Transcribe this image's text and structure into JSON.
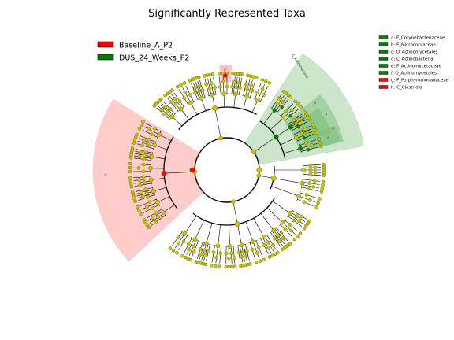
{
  "title": "Significantly Represented Taxa",
  "colors": {
    "baseline": "#ff0000",
    "dus": "#008000",
    "baseline_shade": "#ffb0b0",
    "dus_shade": "#7fc07f",
    "node": "#c8c800",
    "node_stroke": "#6b6b00"
  },
  "legend": [
    {
      "label": "Baseline_A_P2",
      "color": "#ff0000"
    },
    {
      "label": "DUS_24_Weeks_P2",
      "color": "#008000"
    }
  ],
  "taxa_legend": [
    {
      "label": "a: F_Corynebacteriaceae",
      "color": "#008000"
    },
    {
      "label": "b: F_Micrococcaceae",
      "color": "#008000"
    },
    {
      "label": "c: O_Actinomycetales",
      "color": "#008000"
    },
    {
      "label": "d: C_Actinobacteria",
      "color": "#008000"
    },
    {
      "label": "e: F_Actinomycetaceae",
      "color": "#008000"
    },
    {
      "label": "f: O_Actinomycetales",
      "color": "#008000"
    },
    {
      "label": "g: F_Porphyromonadaceae",
      "color": "#ff0000"
    },
    {
      "label": "h: C_Clostridia",
      "color": "#ff0000"
    }
  ],
  "clade_labels": {
    "actinobacteria": "C_Actinobacteria",
    "clostridia": "c:",
    "porphyro": "g:",
    "a": "a",
    "b": "b",
    "e": "e",
    "f": "f"
  }
}
